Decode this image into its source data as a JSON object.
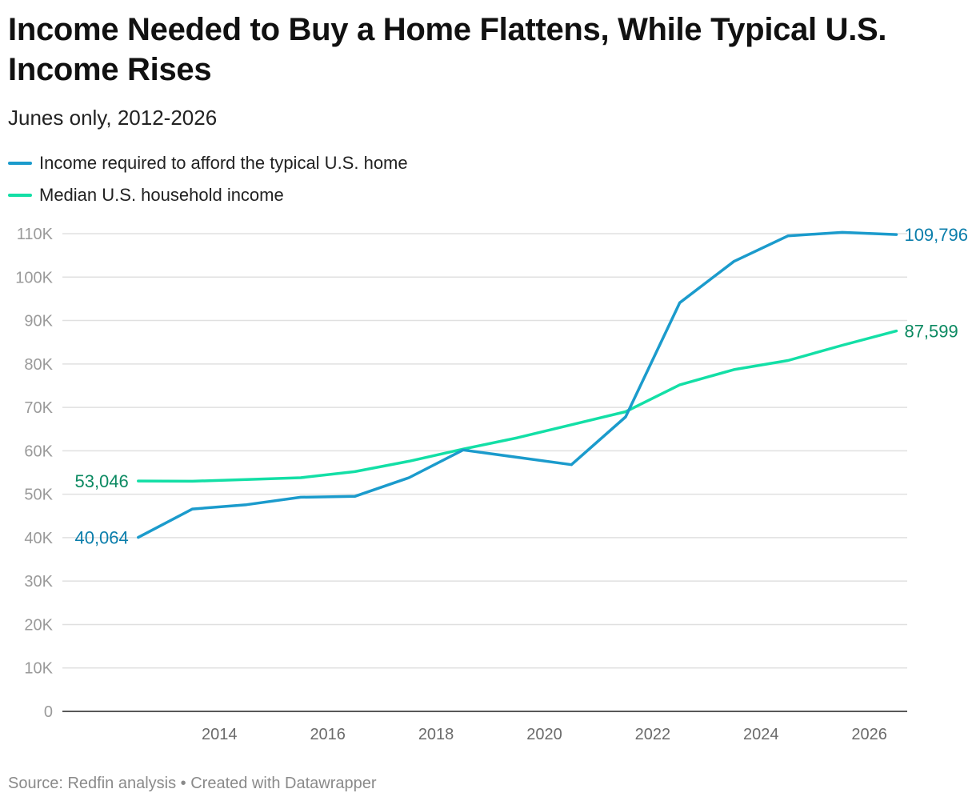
{
  "title": "Income Needed to Buy a Home Flattens, While Typical U.S. Income Rises",
  "subtitle": "Junes only, 2012-2026",
  "footer": "Source: Redfin analysis • Created with Datawrapper",
  "colors": {
    "required": "#1b9bcc",
    "required_label": "#0b7eab",
    "median": "#13dfa6",
    "median_label": "#0c8a62",
    "grid": "#e0e0e0",
    "axis": "#222222",
    "tick": "#9a9a9a",
    "xtick": "#6b6b6b"
  },
  "chart_data": {
    "type": "line",
    "x": [
      2012.5,
      2013.5,
      2014.5,
      2015.5,
      2016.5,
      2017.5,
      2018.5,
      2019.5,
      2020.5,
      2021.5,
      2022.5,
      2023.5,
      2024.5,
      2025.5,
      2026.5
    ],
    "series": [
      {
        "name": "Income required to afford the typical U.S. home",
        "color": "#1b9bcc",
        "values": [
          40064,
          46600,
          47600,
          49300,
          49500,
          53800,
          60200,
          58500,
          56800,
          67800,
          94100,
          103600,
          109500,
          110300,
          109796
        ],
        "start_label": "40,064",
        "end_label": "109,796"
      },
      {
        "name": "Median U.S. household income",
        "color": "#13dfa6",
        "values": [
          53046,
          53000,
          53400,
          53800,
          55200,
          57600,
          60400,
          63000,
          66000,
          69000,
          75200,
          78700,
          80800,
          84300,
          87599
        ],
        "start_label": "53,046",
        "end_label": "87,599"
      }
    ],
    "xticks": [
      2014,
      2016,
      2018,
      2020,
      2022,
      2024,
      2026
    ],
    "xtick_labels": [
      "2014",
      "2016",
      "2018",
      "2020",
      "2022",
      "2024",
      "2026"
    ],
    "yticks": [
      0,
      10000,
      20000,
      30000,
      40000,
      50000,
      60000,
      70000,
      80000,
      90000,
      100000,
      110000
    ],
    "ytick_labels": [
      "0",
      "10K",
      "20K",
      "30K",
      "40K",
      "50K",
      "60K",
      "70K",
      "80K",
      "90K",
      "100K",
      "110K"
    ],
    "xlim": [
      2011.1,
      2026.7
    ],
    "ylim": [
      0,
      110000
    ],
    "xlabel": "",
    "ylabel": "",
    "grid": true,
    "legend_position": "top-left"
  }
}
